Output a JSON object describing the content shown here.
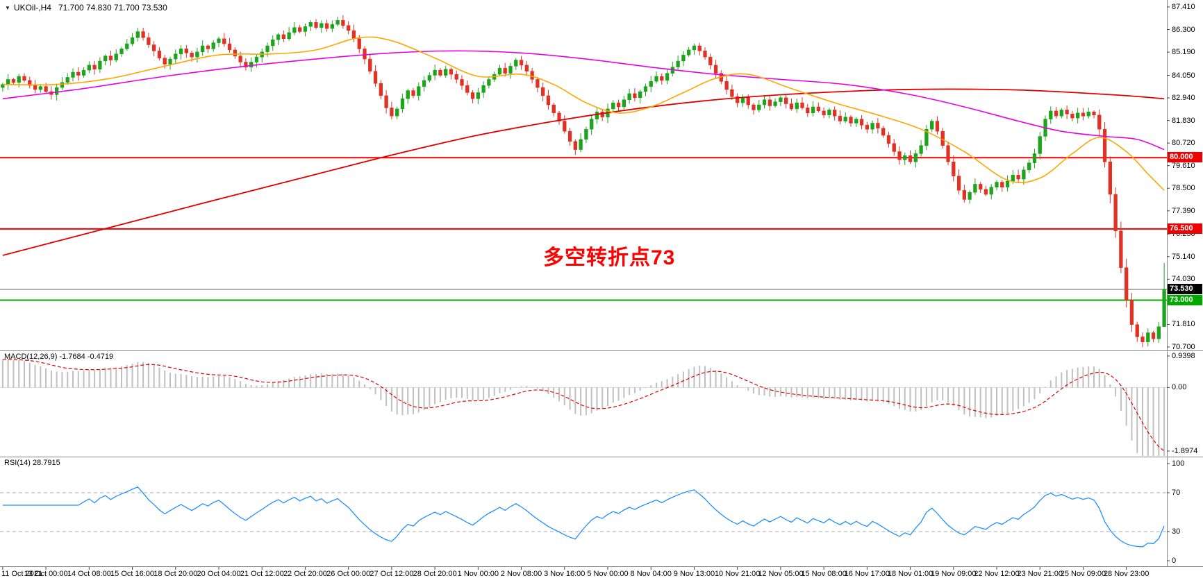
{
  "header": {
    "collapse_icon": "▼",
    "symbol_period": "UKOil-,H4",
    "ohlc_readout": "71.700 74.830 71.700 73.530"
  },
  "macd_panel": {
    "label": "MACD(12,26,9) -1.7684 -0.4719",
    "axis_labels": [
      "0.9398",
      "0.00",
      "-1.8974"
    ],
    "range": [
      -1.8974,
      0.9398
    ]
  },
  "rsi_panel": {
    "label": "RSI(14) 28.7915",
    "axis_labels": [
      "100",
      "70",
      "30",
      "0"
    ],
    "dashed_levels": [
      70,
      30
    ],
    "range": [
      0,
      100
    ]
  },
  "colors": {
    "up_candle": "#1CA51C",
    "down_candle": "#E03224",
    "ma_slow_red": "#E00000",
    "ma_mid_magenta": "#E600E6",
    "ma_fast_orange": "#FFA500",
    "level_red": "#F00000",
    "level_green": "#00A800",
    "current_price_line": "#666666",
    "current_price_badge": "#000000",
    "macd_histogram": "#C0C0C0",
    "macd_signal": "#E00000",
    "rsi_line": "#1E90FF",
    "panel_border": "#888888",
    "axis_text": "#000000"
  },
  "chart_data": {
    "type": "candlestick",
    "symbol": "UKOil-",
    "timeframe": "H4",
    "y_range": [
      70.7,
      87.41
    ],
    "y_axis_labels": [
      "87.410",
      "86.300",
      "85.190",
      "84.050",
      "82.940",
      "81.830",
      "80.720",
      "79.610",
      "78.500",
      "77.390",
      "76.250",
      "75.140",
      "74.030",
      "71.810",
      "70.700"
    ],
    "time_labels": [
      "11 Oct 2021",
      "13 Oct 00:00",
      "14 Oct 08:00",
      "15 Oct 16:00",
      "18 Oct 20:00",
      "20 Oct 04:00",
      "21 Oct 12:00",
      "22 Oct 20:00",
      "26 Oct 00:00",
      "27 Oct 12:00",
      "28 Oct 20:00",
      "1 Nov 00:00",
      "2 Nov 08:00",
      "3 Nov 16:00",
      "5 Nov 00:00",
      "8 Nov 04:00",
      "9 Nov 13:00",
      "10 Nov 21:00",
      "12 Nov 05:00",
      "15 Nov 08:00",
      "16 Nov 17:00",
      "18 Nov 01:00",
      "19 Nov 09:00",
      "22 Nov 12:00",
      "23 Nov 21:00",
      "25 Nov 09:00",
      "28 Nov 23:00"
    ],
    "bars_per_time_label": 8,
    "current_bar_ohlc": {
      "open": 71.7,
      "high": 74.83,
      "low": 71.7,
      "close": 73.53
    },
    "closes": [
      83.6,
      83.85,
      83.7,
      84.0,
      83.8,
      83.55,
      83.35,
      83.5,
      83.25,
      83.1,
      83.45,
      83.7,
      83.95,
      84.2,
      84.05,
      84.3,
      84.55,
      84.35,
      84.75,
      85.0,
      84.8,
      85.1,
      85.35,
      85.6,
      85.9,
      86.2,
      85.9,
      85.55,
      85.25,
      84.9,
      84.6,
      84.85,
      85.1,
      85.35,
      85.15,
      84.95,
      85.2,
      85.5,
      85.35,
      85.65,
      85.85,
      85.6,
      85.3,
      85.0,
      84.7,
      84.45,
      84.7,
      84.95,
      85.2,
      85.5,
      85.8,
      86.05,
      85.85,
      86.15,
      86.4,
      86.2,
      86.45,
      86.65,
      86.4,
      86.6,
      86.35,
      86.55,
      86.75,
      86.5,
      86.25,
      85.85,
      85.35,
      84.85,
      84.25,
      83.65,
      83.05,
      82.45,
      82.05,
      82.4,
      82.9,
      83.3,
      83.05,
      83.5,
      83.8,
      84.05,
      84.3,
      84.05,
      84.35,
      84.1,
      83.85,
      83.55,
      83.2,
      82.9,
      83.2,
      83.55,
      83.85,
      84.1,
      84.4,
      84.15,
      84.5,
      84.8,
      84.55,
      84.25,
      83.85,
      83.45,
      83.05,
      82.6,
      82.2,
      81.8,
      81.3,
      80.8,
      80.4,
      80.9,
      81.4,
      81.9,
      82.25,
      82.0,
      82.4,
      82.7,
      82.5,
      82.85,
      83.15,
      82.95,
      83.25,
      83.5,
      83.75,
      84.0,
      83.8,
      84.15,
      84.45,
      84.75,
      85.05,
      85.3,
      85.5,
      85.25,
      84.95,
      84.55,
      84.15,
      83.75,
      83.35,
      83.0,
      82.7,
      82.95,
      82.6,
      82.35,
      82.6,
      82.85,
      82.55,
      82.75,
      82.95,
      82.65,
      82.4,
      82.7,
      82.45,
      82.2,
      82.5,
      82.3,
      82.1,
      82.35,
      82.05,
      81.8,
      82.0,
      81.7,
      81.9,
      81.6,
      81.4,
      81.7,
      81.45,
      81.1,
      80.7,
      80.3,
      79.9,
      80.1,
      79.8,
      80.2,
      80.6,
      81.4,
      81.8,
      81.3,
      80.6,
      79.8,
      79.1,
      78.4,
      77.95,
      78.3,
      78.7,
      78.45,
      78.2,
      78.55,
      78.8,
      78.55,
      78.85,
      79.15,
      78.95,
      79.4,
      79.75,
      80.2,
      81.05,
      81.9,
      82.3,
      82.05,
      82.35,
      82.15,
      81.95,
      82.2,
      82.05,
      82.25,
      82.1,
      81.4,
      79.8,
      78.2,
      76.4,
      74.6,
      73.0,
      71.8,
      71.2,
      70.95,
      71.4,
      71.1,
      71.7,
      73.53
    ],
    "levels": [
      {
        "label": "80.000",
        "value": 80.0,
        "color": "#F00000",
        "kind": "resistance"
      },
      {
        "label": "76.500",
        "value": 76.5,
        "color": "#F00000",
        "kind": "resistance"
      },
      {
        "label": "73.530",
        "value": 73.53,
        "color": "#000000",
        "line_color": "#666666",
        "kind": "current-price"
      },
      {
        "label": "73.000",
        "value": 73.0,
        "color": "#00A800",
        "kind": "support"
      }
    ],
    "annotation": {
      "text": "多空转折点73",
      "color": "#FE0000"
    },
    "ma_lines": [
      {
        "name": "slow-ma-red",
        "color": "#E00000",
        "points": [
          [
            0,
            75.2
          ],
          [
            70,
            80.0
          ],
          [
            100,
            81.7
          ],
          [
            130,
            82.8
          ],
          [
            160,
            83.3
          ],
          [
            185,
            83.35
          ],
          [
            205,
            83.1
          ],
          [
            215,
            82.9
          ]
        ]
      },
      {
        "name": "mid-ma-magenta",
        "color": "#E600E6",
        "points": [
          [
            0,
            82.9
          ],
          [
            15,
            83.4
          ],
          [
            30,
            84.0
          ],
          [
            45,
            84.5
          ],
          [
            60,
            84.9
          ],
          [
            72,
            85.15
          ],
          [
            84,
            85.25
          ],
          [
            96,
            85.15
          ],
          [
            108,
            84.85
          ],
          [
            120,
            84.45
          ],
          [
            132,
            84.1
          ],
          [
            144,
            83.85
          ],
          [
            156,
            83.6
          ],
          [
            168,
            83.1
          ],
          [
            178,
            82.5
          ],
          [
            188,
            81.8
          ],
          [
            196,
            81.3
          ],
          [
            204,
            81.05
          ],
          [
            210,
            80.9
          ],
          [
            215,
            80.4
          ]
        ]
      },
      {
        "name": "fast-ma-orange",
        "color": "#FFA500",
        "points": [
          [
            0,
            83.6
          ],
          [
            10,
            83.6
          ],
          [
            20,
            83.9
          ],
          [
            30,
            84.5
          ],
          [
            40,
            85.05
          ],
          [
            50,
            85.1
          ],
          [
            58,
            85.3
          ],
          [
            66,
            85.9
          ],
          [
            72,
            85.75
          ],
          [
            80,
            84.9
          ],
          [
            88,
            84.0
          ],
          [
            96,
            84.1
          ],
          [
            102,
            83.6
          ],
          [
            108,
            82.7
          ],
          [
            114,
            82.2
          ],
          [
            120,
            82.5
          ],
          [
            126,
            83.2
          ],
          [
            132,
            83.9
          ],
          [
            138,
            84.1
          ],
          [
            146,
            83.4
          ],
          [
            154,
            82.7
          ],
          [
            162,
            82.1
          ],
          [
            170,
            81.4
          ],
          [
            178,
            80.3
          ],
          [
            186,
            78.9
          ],
          [
            192,
            79.0
          ],
          [
            198,
            80.2
          ],
          [
            203,
            81.0
          ],
          [
            208,
            80.3
          ],
          [
            212,
            79.2
          ],
          [
            215,
            78.4
          ]
        ]
      }
    ],
    "indicators": {
      "macd": {
        "fast": 12,
        "slow": 26,
        "signal": 9,
        "last_main": -1.7684,
        "last_signal": -0.4719
      },
      "rsi": {
        "period": 14,
        "last": 28.7915
      }
    }
  }
}
